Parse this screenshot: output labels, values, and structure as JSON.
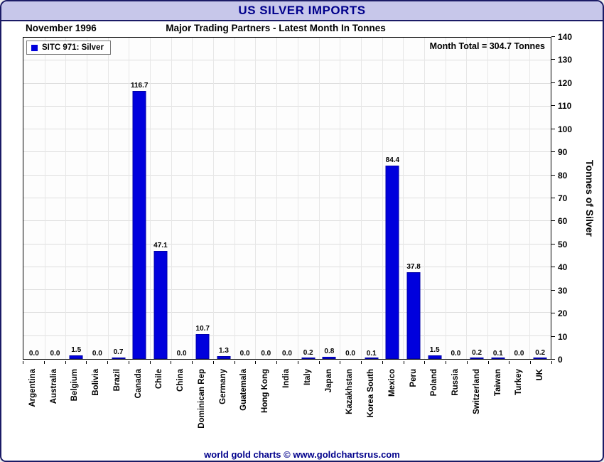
{
  "title": "US SILVER IMPORTS",
  "header": {
    "date_label": "November 1996",
    "subtitle": "Major Trading Partners - Latest Month In Tonnes"
  },
  "legend": {
    "label": "SITC 971: Silver"
  },
  "annotation": "Month Total = 304.7 Tonnes",
  "footer": "world gold charts © www.goldchartsrus.com",
  "colors": {
    "bar": "#0000dd",
    "titlebar_bg": "#c7c7ea",
    "title_text": "#00008b",
    "frame_border": "#1b1b66"
  },
  "chart_data": {
    "type": "bar",
    "title": "US SILVER IMPORTS",
    "subtitle": "Major Trading Partners - Latest Month In Tonnes",
    "period": "November 1996",
    "series_name": "SITC 971: Silver",
    "month_total": 304.7,
    "categories": [
      "Argentina",
      "Australia",
      "Belgium",
      "Bolivia",
      "Brazil",
      "Canada",
      "Chile",
      "China",
      "Dominican Rep",
      "Germany",
      "Guatemala",
      "Hong Kong",
      "India",
      "Italy",
      "Japan",
      "Kazakhstan",
      "Korea South",
      "Mexico",
      "Peru",
      "Poland",
      "Russia",
      "Switzerland",
      "Taiwan",
      "Turkey",
      "UK"
    ],
    "values": [
      0.0,
      0.0,
      1.5,
      0.0,
      0.7,
      116.7,
      47.1,
      0.0,
      10.7,
      1.3,
      0.0,
      0.0,
      0.0,
      0.2,
      0.8,
      0.0,
      0.1,
      84.4,
      37.8,
      1.5,
      0.0,
      0.2,
      0.1,
      0.0,
      0.2
    ],
    "xlabel": "",
    "ylabel": "Tonnes of Silver",
    "ylim": [
      0,
      140
    ],
    "ytick_step": 10,
    "grid": true,
    "legend_position": "top-left",
    "value_label_decimals": 1
  }
}
